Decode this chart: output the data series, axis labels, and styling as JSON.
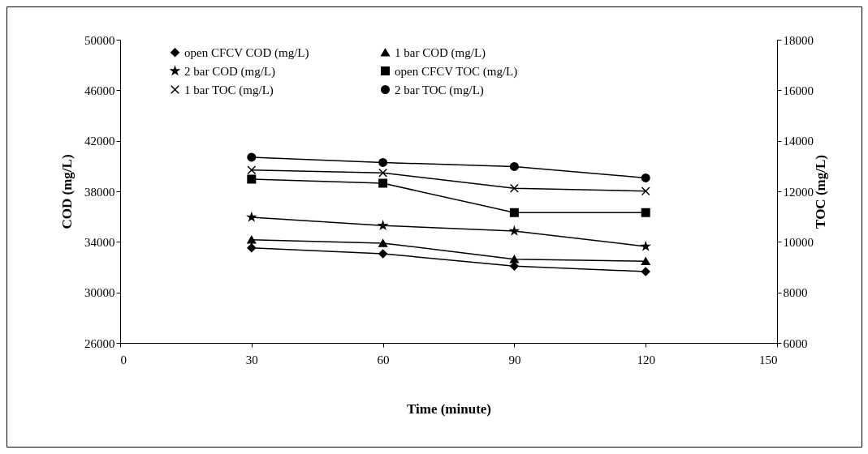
{
  "chart_data": {
    "type": "line",
    "xlabel": "Time (minute)",
    "ylabel": "COD (mg/L)",
    "y2label": "TOC (mg/L)",
    "x": [
      30,
      60,
      90,
      120
    ],
    "series": [
      {
        "name": "open CFCV COD (mg/L)",
        "color": "#000000",
        "marker": "diamond",
        "values": [
          33530,
          33060,
          32080,
          31650
        ]
      },
      {
        "name": "1 bar COD (mg/L)",
        "color": "#000000",
        "marker": "triangle",
        "values": [
          34170,
          33900,
          32630,
          32470
        ]
      },
      {
        "name": "2 bar COD (mg/L)",
        "color": "#000000",
        "marker": "star",
        "values": [
          35950,
          35290,
          34860,
          33640
        ]
      },
      {
        "name": "open CFCV TOC (mg/L)",
        "color": "#000000",
        "marker": "square",
        "axis": "y2",
        "values": [
          12480,
          12320,
          11160,
          11160
        ]
      },
      {
        "name": "1 bar TOC (mg/L)",
        "color": "#000000",
        "marker": "cross",
        "axis": "y2",
        "values": [
          12840,
          12730,
          12120,
          12010
        ]
      },
      {
        "name": "2 bar TOC (mg/L)",
        "color": "#000000",
        "marker": "circle",
        "axis": "y2",
        "values": [
          13350,
          13140,
          12980,
          12530
        ]
      }
    ],
    "xlim": [
      0,
      150
    ],
    "xticks": [
      0,
      30,
      60,
      90,
      120,
      150
    ],
    "ylim": [
      26000,
      50000
    ],
    "yticks": [
      26000,
      30000,
      34000,
      38000,
      42000,
      46000,
      50000
    ],
    "y2lim": [
      6000,
      18000
    ],
    "y2ticks": [
      6000,
      8000,
      10000,
      12000,
      14000,
      16000,
      18000
    ],
    "grid": false,
    "legend": "top",
    "line_style": "solid"
  }
}
